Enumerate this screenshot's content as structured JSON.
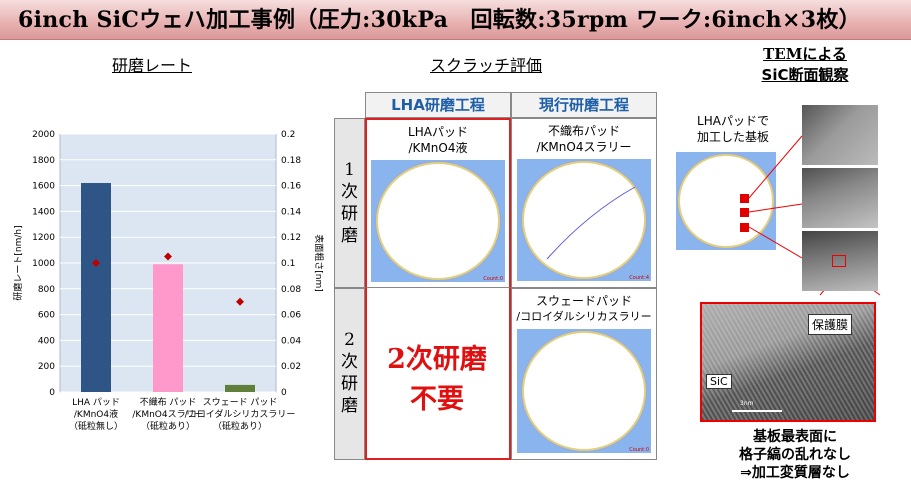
{
  "header": {
    "title": "6inch SiCウェハ加工事例（圧力:30kPa　回転数:35rpm ワーク:6inch×3枚）"
  },
  "rate_section": {
    "title": "研磨レート"
  },
  "scratch_section": {
    "title": "スクラッチ評価"
  },
  "tem_section": {
    "title_line1": "TEMによる",
    "title_line2": "SiC断面観察"
  },
  "chart_data": {
    "type": "bar",
    "categories": [
      [
        "LHA パッド",
        "/KMnO4液",
        "（砥粒無し）"
      ],
      [
        "不織布 パッド",
        "/KMnO4スラリー",
        "（砥粒あり）"
      ],
      [
        "スウェード パッド",
        "/コロイダルシリカスラリー",
        "（砥粒あり）"
      ]
    ],
    "series": [
      {
        "values": [
          1620,
          990,
          55
        ],
        "axis": "left",
        "colors": [
          "#2e5585",
          "#ff99cc",
          "#5f7f3a"
        ]
      },
      {
        "values": [
          0.1,
          0.105,
          0.07
        ],
        "axis": "right",
        "marker": "diamond",
        "color": "#c00000"
      }
    ],
    "ylabel": "研磨レート[nm/h]",
    "y2label": "表面粗さ[nm]",
    "ylim": [
      0,
      2000
    ],
    "y2lim": [
      0,
      0.2
    ],
    "yticks": [
      "0",
      "200",
      "400",
      "600",
      "800",
      "1000",
      "1200",
      "1400",
      "1600",
      "1800",
      "2000"
    ],
    "y2ticks": [
      "0",
      "0.02",
      "0.04",
      "0.06",
      "0.08",
      "0.1",
      "0.12",
      "0.14",
      "0.16",
      "0.18",
      "0.2"
    ],
    "grid": true
  },
  "scratch_table": {
    "col_headers": [
      "LHA研磨工程",
      "現行研磨工程"
    ],
    "row1_label": [
      "1",
      "次",
      "研",
      "磨"
    ],
    "row2_label": [
      "2",
      "次",
      "研",
      "磨"
    ],
    "lha_first": [
      "LHAパッド",
      "/KMnO4液"
    ],
    "current_first": [
      "不織布パッド",
      "/KMnO4スラリー"
    ],
    "current_second": [
      "スウェードパッド",
      "/コロイダルシリカスラリー"
    ],
    "no_second": [
      "2次研磨",
      "不要"
    ],
    "count_label": "Count:0",
    "count_label_2": "Count:4"
  },
  "tem": {
    "substrate_label": [
      "LHAパッドで",
      "加工した基板"
    ],
    "protective_film": "保護膜",
    "sic_label": "SiC",
    "scale_label": "3nm",
    "caption": [
      "基板最表面に",
      "格子縞の乱れなし",
      "⇒加工変質層なし"
    ]
  }
}
